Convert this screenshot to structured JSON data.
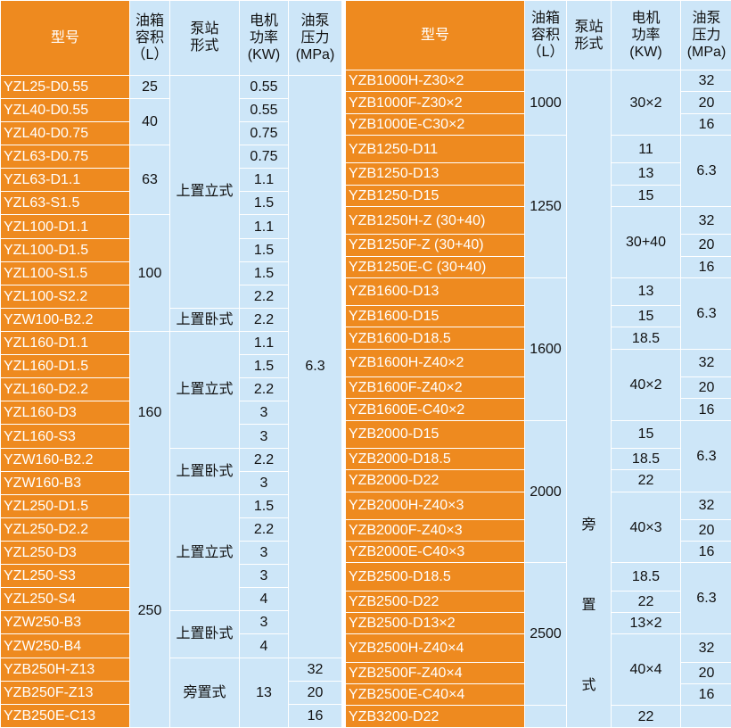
{
  "left": {
    "header": [
      "型号",
      "油箱\n容积\n（L）",
      "泵站\n形式",
      "电机\n功率\n(KW)",
      "油泵\n压力\n(MPa)"
    ],
    "rows": [
      [
        "YZL25-D0.55",
        "25",
        "上置立式",
        "0.55",
        "6.3"
      ],
      [
        "YZL40-D0.55",
        "40",
        "0.55"
      ],
      [
        "YZL40-D0.75",
        "0.75"
      ],
      [
        "YZL63-D0.75",
        "63",
        "0.75"
      ],
      [
        "YZL63-D1.1",
        "1.1"
      ],
      [
        "YZL63-S1.5",
        "1.5"
      ],
      [
        "YZL100-D1.1",
        "100",
        "1.1"
      ],
      [
        "YZL100-D1.5",
        "1.5"
      ],
      [
        "YZL100-S1.5",
        "1.5"
      ],
      [
        "YZL100-S2.2",
        "2.2"
      ],
      [
        "YZW100-B2.2",
        "上置卧式",
        "2.2"
      ],
      [
        "YZL160-D1.1",
        "160",
        "上置立式",
        "1.1"
      ],
      [
        "YZL160-D1.5",
        "1.5"
      ],
      [
        "YZL160-D2.2",
        "2.2"
      ],
      [
        "YZL160-D3",
        "3"
      ],
      [
        "YZL160-S3",
        "3"
      ],
      [
        "YZW160-B2.2",
        "上置卧式",
        "2.2"
      ],
      [
        "YZW160-B3",
        "3"
      ],
      [
        "YZL250-D1.5",
        "250",
        "上置立式",
        "1.5"
      ],
      [
        "YZL250-D2.2",
        "2.2"
      ],
      [
        "YZL250-D3",
        "3"
      ],
      [
        "YZL250-S3",
        "3"
      ],
      [
        "YZL250-S4",
        "4"
      ],
      [
        "YZW250-B3",
        "上置卧式",
        "3"
      ],
      [
        "YZW250-B4",
        "4"
      ],
      [
        "YZB250H-Z13",
        "旁置式",
        "13",
        "32"
      ],
      [
        "YZB250F-Z13",
        "20"
      ],
      [
        "YZB250E-C13",
        "16"
      ]
    ]
  },
  "right": {
    "header": [
      "型号",
      "油箱\n容积\n（L）",
      "泵站\n形式",
      "电机\n功率\n(KW)",
      "油泵\n压力\n(MPa)"
    ],
    "pump_type": [
      "旁",
      "置",
      "式"
    ],
    "rows": [
      [
        "YZB1000H-Z30×2",
        "1000",
        "30×2",
        "32"
      ],
      [
        "YZB1000F-Z30×2",
        "20"
      ],
      [
        "YZB1000E-C30×2",
        "16"
      ],
      [
        "YZB1250-D11",
        "1250",
        "11",
        "6.3"
      ],
      [
        "YZB1250-D13",
        "13"
      ],
      [
        "YZB1250-D15",
        "15"
      ],
      [
        "YZB1250H-Z (30+40)",
        "30+40",
        "32"
      ],
      [
        "YZB1250F-Z (30+40)",
        "20"
      ],
      [
        "YZB1250E-C (30+40)",
        "16"
      ],
      [
        "YZB1600-D13",
        "1600",
        "13",
        "6.3"
      ],
      [
        "YZB1600-D15",
        "15"
      ],
      [
        "YZB1600-D18.5",
        "18.5"
      ],
      [
        "YZB1600H-Z40×2",
        "40×2",
        "32"
      ],
      [
        "YZB1600F-Z40×2",
        "20"
      ],
      [
        "YZB1600E-C40×2",
        "16"
      ],
      [
        "YZB2000-D15",
        "2000",
        "15",
        "6.3"
      ],
      [
        "YZB2000-D18.5",
        "18.5"
      ],
      [
        "YZB2000-D22",
        "22"
      ],
      [
        "YZB2000H-Z40×3",
        "40×3",
        "32"
      ],
      [
        "YZB2000F-Z40×3",
        "20"
      ],
      [
        "YZB2000E-C40×3",
        "16"
      ],
      [
        "YZB2500-D18.5",
        "2500",
        "18.5",
        "6.3"
      ],
      [
        "YZB2500-D22",
        "22"
      ],
      [
        "YZB2500-D13×2",
        "13×2"
      ],
      [
        "YZB2500H-Z40×4",
        "40×4",
        "32"
      ],
      [
        "YZB2500F-Z40×4",
        "20"
      ],
      [
        "YZB2500E-C40×4",
        "16"
      ],
      [
        "YZB3200-D22",
        "22"
      ]
    ]
  }
}
